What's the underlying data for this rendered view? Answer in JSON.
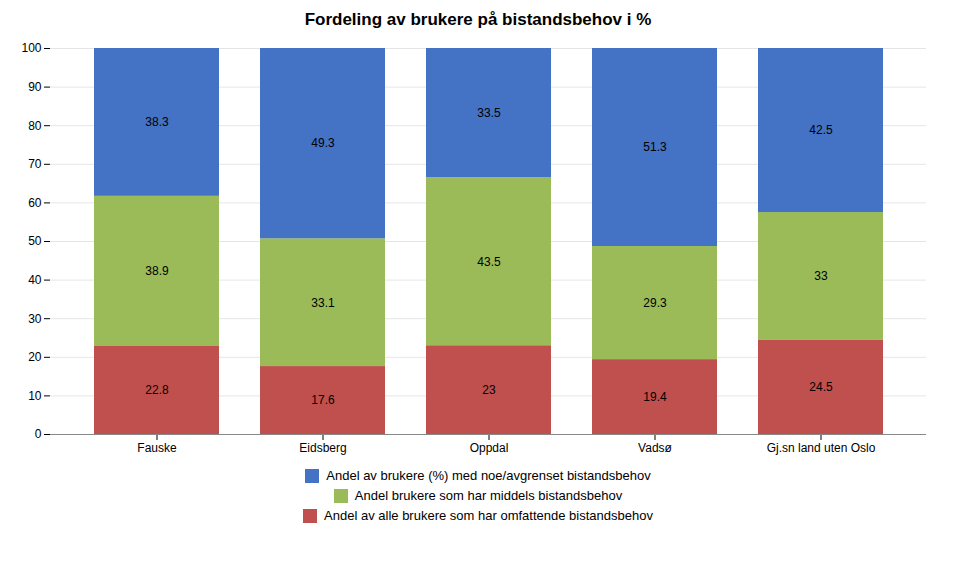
{
  "chart_data": {
    "type": "bar",
    "stacked": true,
    "title": "Fordeling av brukere på bistandsbehov i %",
    "categories": [
      "Fauske",
      "Eidsberg",
      "Oppdal",
      "Vadsø",
      "Gj.sn land uten Oslo"
    ],
    "series": [
      {
        "name": "Andel av brukere (%) med noe/avgrenset bistandsbehov",
        "color": "#4472C4",
        "values": [
          38.3,
          49.3,
          33.5,
          51.3,
          42.5
        ]
      },
      {
        "name": "Andel brukere som har middels bistandsbehov",
        "color": "#9BBB59",
        "values": [
          38.9,
          33.1,
          43.5,
          29.3,
          33.0
        ]
      },
      {
        "name": "Andel av alle brukere som har omfattende bistandsbehov",
        "color": "#C0504D",
        "values": [
          22.8,
          17.6,
          23.0,
          19.4,
          24.5
        ]
      }
    ],
    "ylim": [
      0,
      100
    ],
    "yticks": [
      0,
      10,
      20,
      30,
      40,
      50,
      60,
      70,
      80,
      90,
      100
    ],
    "grid": true,
    "data_labels": true,
    "legend": "bottom"
  }
}
